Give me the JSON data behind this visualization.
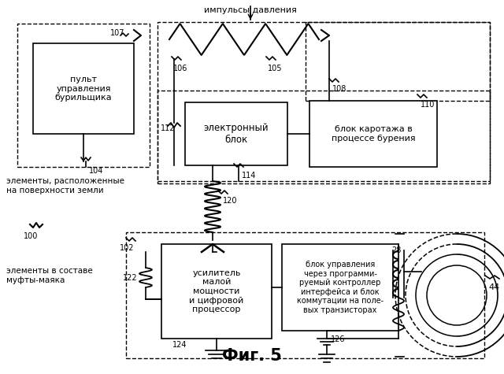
{
  "title": "Фиг. 5",
  "bg_color": "#ffffff",
  "line_color": "#000000",
  "fig_width": 6.4,
  "fig_height": 4.75,
  "dpi": 100,
  "labels": {
    "impulsy": "импульсы давления",
    "elementy_surface": "элементы, расположенные\nна поверхности земли",
    "pult": "пульт\nуправления\nбурильщика",
    "elektronny": "электронный\nблок",
    "blok_karotazha": "блок каротажа в\nпроцессе бурения",
    "usilitel": "усилитель\nмалой\nмощности\nи цифровой\nпроцессор",
    "blok_upravleniya": "блок управления\nчерез программи-\nруемый контроллер\nинтерфейса и блок\nкоммутации на поле-\nвых транзисторах",
    "elementy_mufty": "элементы в составе\nмуфты-маяка",
    "n100": "100",
    "n102": "102",
    "n104": "104",
    "n105": "105",
    "n106": "106",
    "n107": "107",
    "n108": "108",
    "n110": "110",
    "n112": "112",
    "n114": "114",
    "n120": "120",
    "n122": "122",
    "n124": "124",
    "n126": "126",
    "n28": "28",
    "n44": "44"
  }
}
